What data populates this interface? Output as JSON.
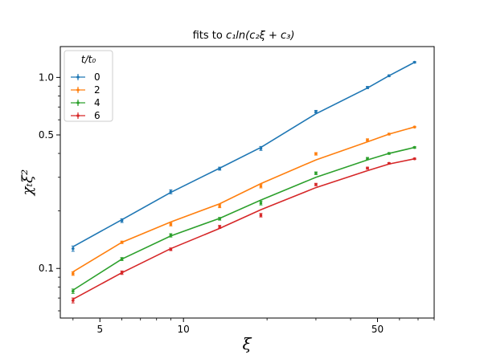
{
  "chart_data": {
    "type": "scatter",
    "title_prefix": "fits to ",
    "title_math": "c₁ln(c₂ξ + c₃)",
    "xlabel": "ξ",
    "ylabel": "χₜξ²",
    "xscale": "log",
    "yscale": "log",
    "xlim": [
      3.6,
      80
    ],
    "ylim": [
      0.055,
      1.45
    ],
    "x_ticks": [
      {
        "value": 5,
        "label": "5"
      },
      {
        "value": 10,
        "label": "10"
      },
      {
        "value": 50,
        "label": "50"
      }
    ],
    "y_ticks": [
      {
        "value": 0.1,
        "label": "0.1"
      },
      {
        "value": 0.5,
        "label": "0.5"
      },
      {
        "value": 1.0,
        "label": "1.0"
      }
    ],
    "grid": false,
    "legend": {
      "title": "t/t₀",
      "placement": "top-left"
    },
    "series": [
      {
        "name": "0",
        "color": "#1f77b4",
        "points": [
          {
            "x": 4.0,
            "y": 0.127,
            "err": 0.004
          },
          {
            "x": 6.0,
            "y": 0.178,
            "err": 0.004
          },
          {
            "x": 9.0,
            "y": 0.252,
            "err": 0.006
          },
          {
            "x": 13.5,
            "y": 0.333,
            "err": 0.006
          },
          {
            "x": 19.0,
            "y": 0.425,
            "err": 0.01
          },
          {
            "x": 30.0,
            "y": 0.662,
            "err": 0.01
          },
          {
            "x": 46.0,
            "y": 0.885,
            "err": 0.012
          },
          {
            "x": 55.0,
            "y": 1.02,
            "err": 0.01
          },
          {
            "x": 68.0,
            "y": 1.2,
            "err": 0.01
          }
        ],
        "fit": [
          {
            "x": 4.0,
            "y": 0.13
          },
          {
            "x": 6.0,
            "y": 0.18
          },
          {
            "x": 9.0,
            "y": 0.25
          },
          {
            "x": 13.5,
            "y": 0.335
          },
          {
            "x": 19.0,
            "y": 0.43
          },
          {
            "x": 30.0,
            "y": 0.645
          },
          {
            "x": 46.0,
            "y": 0.88
          },
          {
            "x": 55.0,
            "y": 1.02
          },
          {
            "x": 68.0,
            "y": 1.2
          }
        ]
      },
      {
        "name": "2",
        "color": "#ff7f0e",
        "points": [
          {
            "x": 4.0,
            "y": 0.094,
            "err": 0.002
          },
          {
            "x": 6.0,
            "y": 0.137,
            "err": 0.002
          },
          {
            "x": 9.0,
            "y": 0.17,
            "err": 0.003
          },
          {
            "x": 13.5,
            "y": 0.212,
            "err": 0.004
          },
          {
            "x": 19.0,
            "y": 0.27,
            "err": 0.006
          },
          {
            "x": 30.0,
            "y": 0.398,
            "err": 0.006
          },
          {
            "x": 46.0,
            "y": 0.471,
            "err": 0.006
          },
          {
            "x": 55.0,
            "y": 0.505,
            "err": 0.005
          },
          {
            "x": 68.0,
            "y": 0.55,
            "err": 0.004
          }
        ],
        "fit": [
          {
            "x": 4.0,
            "y": 0.096
          },
          {
            "x": 6.0,
            "y": 0.137
          },
          {
            "x": 9.0,
            "y": 0.175
          },
          {
            "x": 13.5,
            "y": 0.218
          },
          {
            "x": 19.0,
            "y": 0.278
          },
          {
            "x": 30.0,
            "y": 0.37
          },
          {
            "x": 46.0,
            "y": 0.46
          },
          {
            "x": 55.0,
            "y": 0.505
          },
          {
            "x": 68.0,
            "y": 0.55
          }
        ]
      },
      {
        "name": "4",
        "color": "#2ca02c",
        "points": [
          {
            "x": 4.0,
            "y": 0.076,
            "err": 0.002
          },
          {
            "x": 6.0,
            "y": 0.112,
            "err": 0.002
          },
          {
            "x": 9.0,
            "y": 0.149,
            "err": 0.003
          },
          {
            "x": 13.5,
            "y": 0.182,
            "err": 0.003
          },
          {
            "x": 19.0,
            "y": 0.22,
            "err": 0.005
          },
          {
            "x": 30.0,
            "y": 0.315,
            "err": 0.005
          },
          {
            "x": 46.0,
            "y": 0.376,
            "err": 0.005
          },
          {
            "x": 55.0,
            "y": 0.4,
            "err": 0.004
          },
          {
            "x": 68.0,
            "y": 0.43,
            "err": 0.004
          }
        ],
        "fit": [
          {
            "x": 4.0,
            "y": 0.077
          },
          {
            "x": 6.0,
            "y": 0.112
          },
          {
            "x": 9.0,
            "y": 0.148
          },
          {
            "x": 13.5,
            "y": 0.183
          },
          {
            "x": 19.0,
            "y": 0.228
          },
          {
            "x": 30.0,
            "y": 0.3
          },
          {
            "x": 46.0,
            "y": 0.37
          },
          {
            "x": 55.0,
            "y": 0.4
          },
          {
            "x": 68.0,
            "y": 0.43
          }
        ]
      },
      {
        "name": "6",
        "color": "#d62728",
        "points": [
          {
            "x": 4.0,
            "y": 0.068,
            "err": 0.002
          },
          {
            "x": 6.0,
            "y": 0.095,
            "err": 0.002
          },
          {
            "x": 9.0,
            "y": 0.126,
            "err": 0.002
          },
          {
            "x": 13.5,
            "y": 0.165,
            "err": 0.003
          },
          {
            "x": 19.0,
            "y": 0.19,
            "err": 0.004
          },
          {
            "x": 30.0,
            "y": 0.275,
            "err": 0.004
          },
          {
            "x": 46.0,
            "y": 0.335,
            "err": 0.004
          },
          {
            "x": 55.0,
            "y": 0.355,
            "err": 0.003
          },
          {
            "x": 68.0,
            "y": 0.375,
            "err": 0.003
          }
        ],
        "fit": [
          {
            "x": 4.0,
            "y": 0.069
          },
          {
            "x": 6.0,
            "y": 0.095
          },
          {
            "x": 9.0,
            "y": 0.127
          },
          {
            "x": 13.5,
            "y": 0.162
          },
          {
            "x": 19.0,
            "y": 0.203
          },
          {
            "x": 30.0,
            "y": 0.265
          },
          {
            "x": 46.0,
            "y": 0.325
          },
          {
            "x": 55.0,
            "y": 0.352
          },
          {
            "x": 68.0,
            "y": 0.375
          }
        ]
      }
    ]
  }
}
